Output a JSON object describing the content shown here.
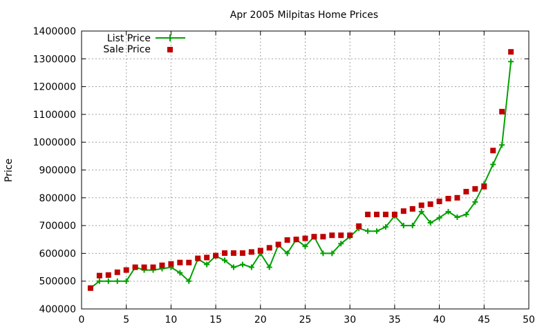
{
  "chart_data": {
    "type": "line",
    "title": "Apr 2005 Milpitas Home Prices",
    "xlabel": "",
    "ylabel": "Price",
    "xlim": [
      0,
      50
    ],
    "ylim": [
      400000,
      1400000
    ],
    "x_ticks": [
      0,
      5,
      10,
      15,
      20,
      25,
      30,
      35,
      40,
      45,
      50
    ],
    "y_ticks": [
      400000,
      500000,
      600000,
      700000,
      800000,
      900000,
      1000000,
      1100000,
      1200000,
      1300000,
      1400000
    ],
    "grid": true,
    "legend_position": "top-left",
    "series": [
      {
        "name": "List Price",
        "style": "line-with-plus-markers",
        "color": "#00a000",
        "x": [
          1,
          2,
          3,
          4,
          5,
          6,
          7,
          8,
          9,
          10,
          11,
          12,
          13,
          14,
          15,
          16,
          17,
          18,
          19,
          20,
          21,
          22,
          23,
          24,
          25,
          26,
          27,
          28,
          29,
          30,
          31,
          32,
          33,
          34,
          35,
          36,
          37,
          38,
          39,
          40,
          41,
          42,
          43,
          44,
          45,
          46,
          47,
          48
        ],
        "values": [
          475000,
          500000,
          500000,
          500000,
          500000,
          550000,
          540000,
          540000,
          545000,
          550000,
          530000,
          500000,
          580000,
          560000,
          590000,
          575000,
          550000,
          560000,
          550000,
          600000,
          550000,
          630000,
          600000,
          650000,
          625000,
          660000,
          600000,
          600000,
          635000,
          660000,
          690000,
          680000,
          680000,
          695000,
          735000,
          700000,
          700000,
          750000,
          710000,
          728000,
          750000,
          730000,
          740000,
          785000,
          850000,
          920000,
          990000,
          1290000
        ]
      },
      {
        "name": "Sale Price",
        "style": "square-markers",
        "color": "#c00000",
        "x": [
          1,
          2,
          3,
          4,
          5,
          6,
          7,
          8,
          9,
          10,
          11,
          12,
          13,
          14,
          15,
          16,
          17,
          18,
          19,
          20,
          21,
          22,
          23,
          24,
          25,
          26,
          27,
          28,
          29,
          30,
          31,
          32,
          33,
          34,
          35,
          36,
          37,
          38,
          39,
          40,
          41,
          42,
          43,
          44,
          45,
          46,
          47,
          48
        ],
        "values": [
          475000,
          520000,
          522000,
          532000,
          540000,
          550000,
          550000,
          550000,
          557000,
          562000,
          567000,
          567000,
          582000,
          585000,
          592000,
          601000,
          601000,
          601000,
          605000,
          610000,
          620000,
          632000,
          648000,
          650000,
          654000,
          660000,
          660000,
          665000,
          665000,
          665000,
          698000,
          740000,
          740000,
          740000,
          740000,
          752000,
          760000,
          773000,
          777000,
          787000,
          797000,
          800000,
          822000,
          832000,
          840000,
          970000,
          1110000,
          1325000
        ]
      }
    ]
  }
}
